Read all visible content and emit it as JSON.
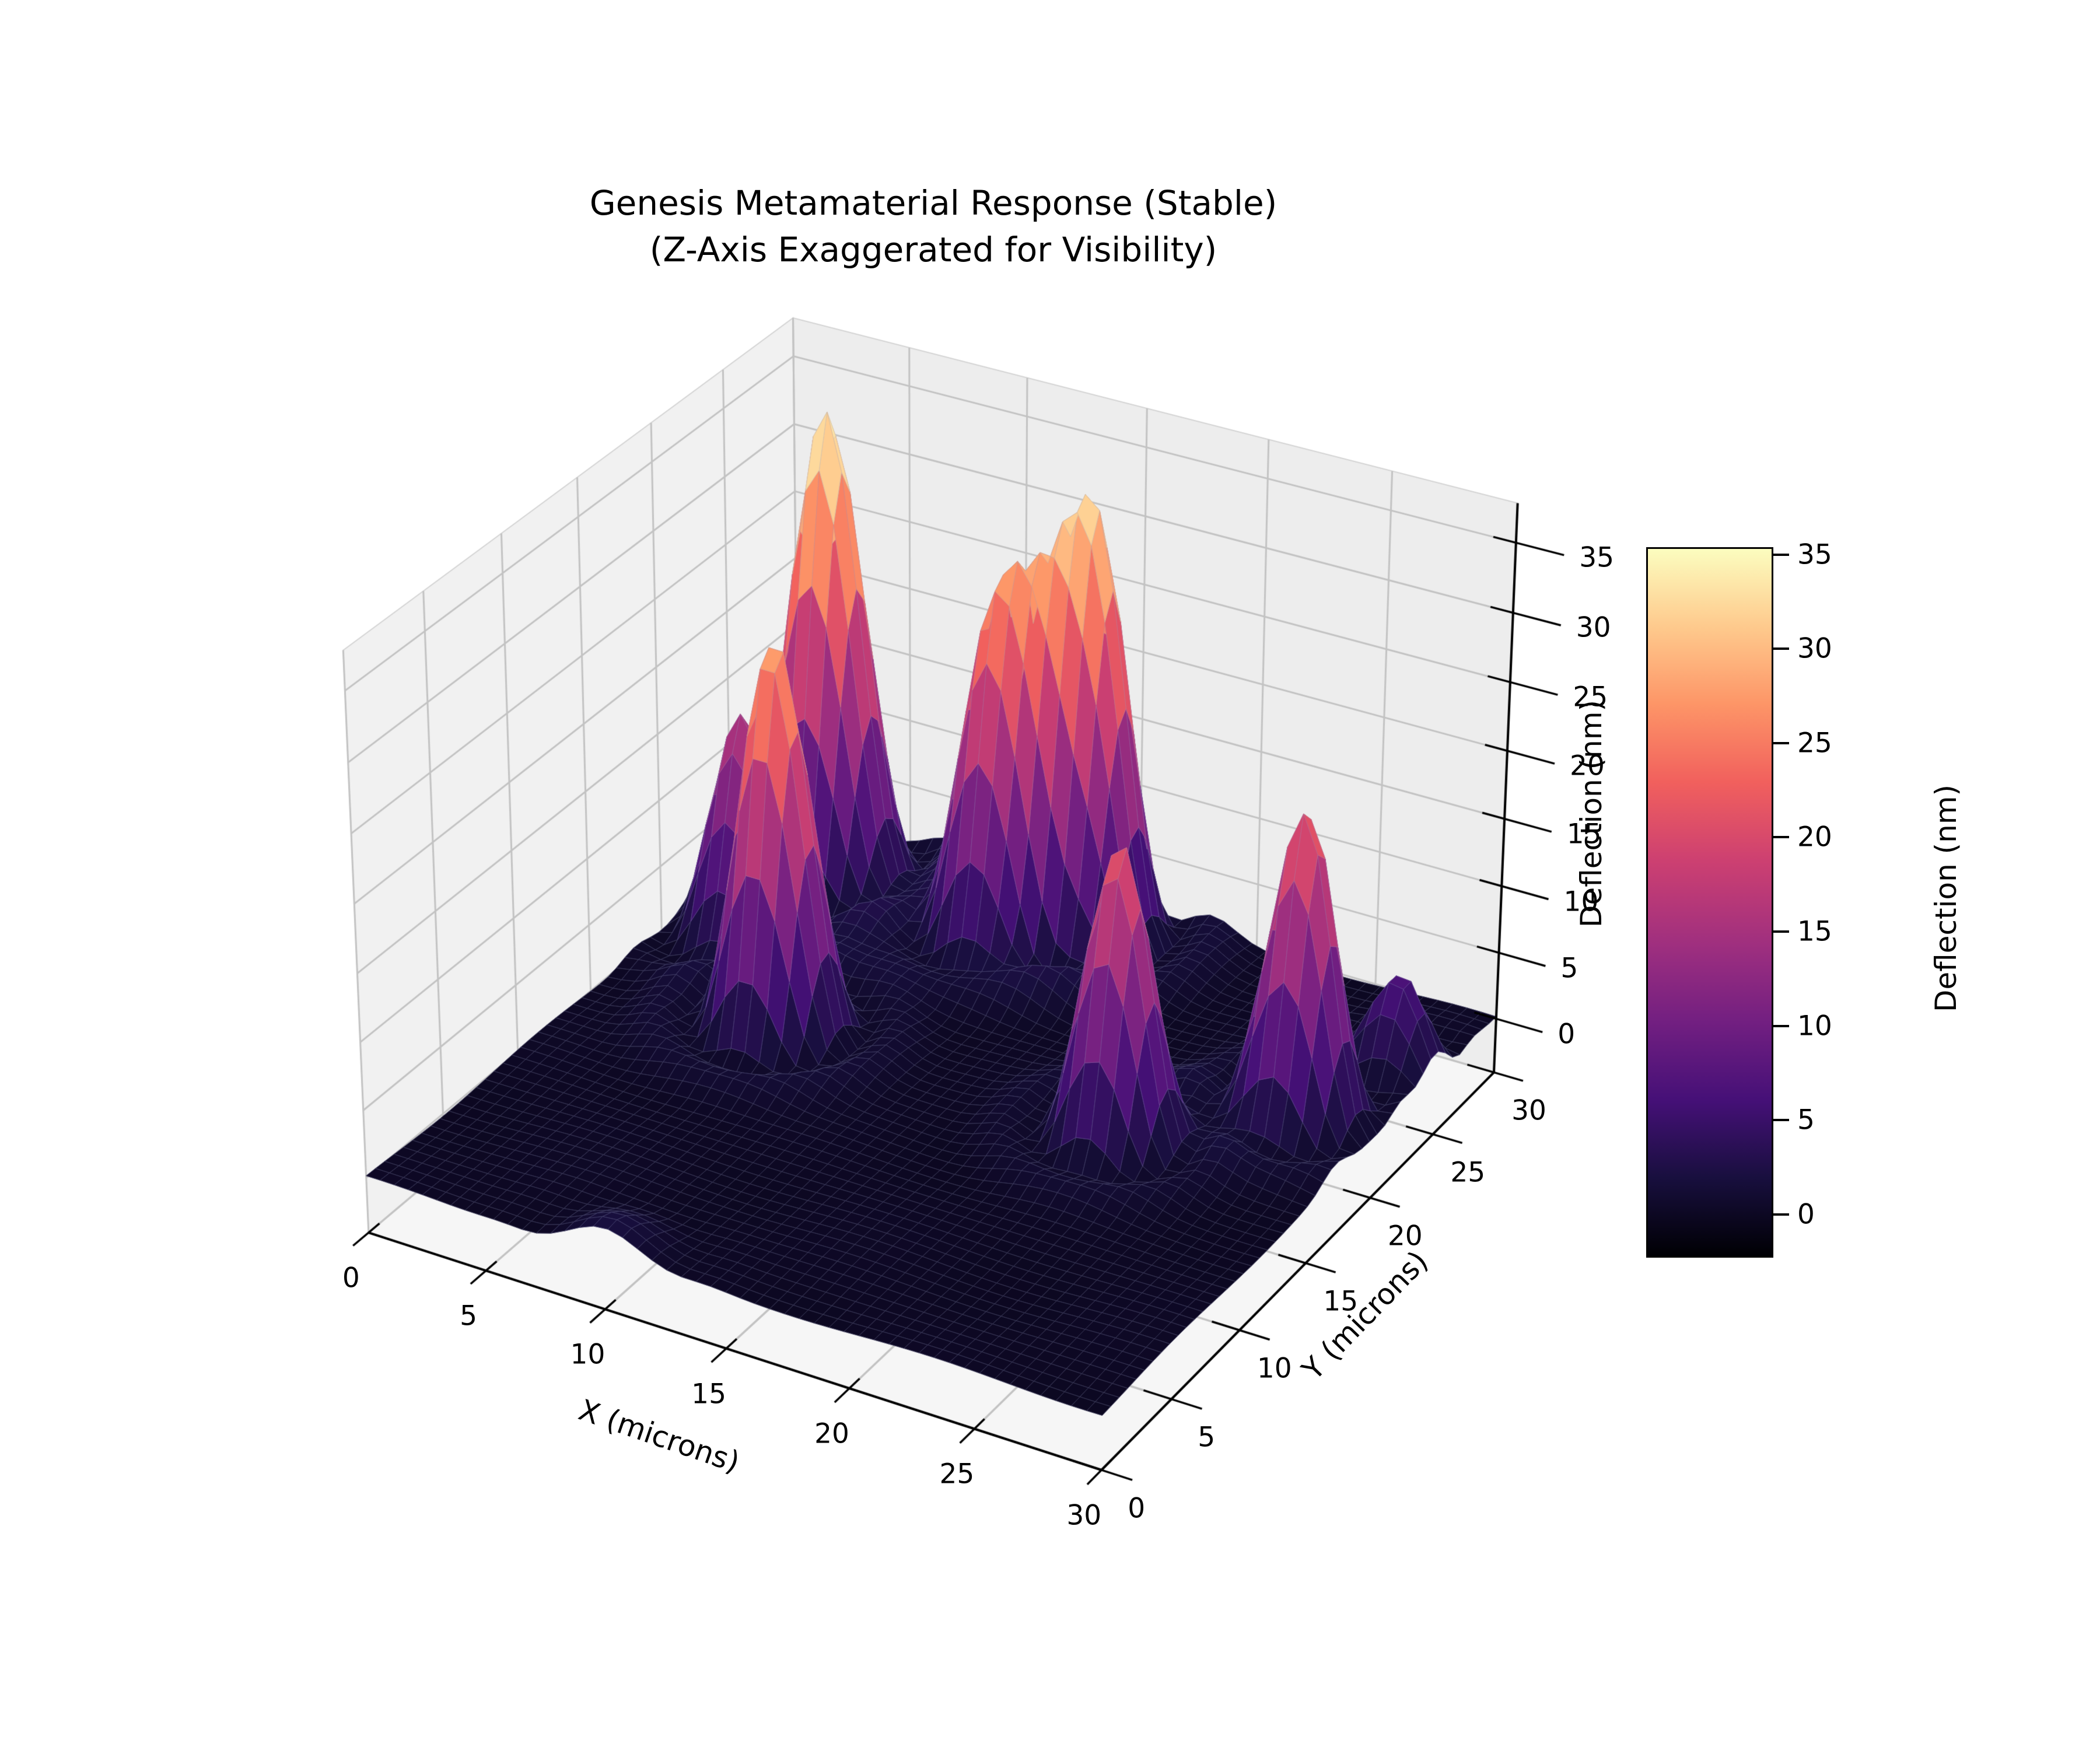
{
  "title": {
    "line1": "Genesis Metamaterial Response (Stable)",
    "line2": "(Z-Axis Exaggerated for Visibility)"
  },
  "chart_data": {
    "type": "surface3d",
    "title": "Genesis Metamaterial Response (Stable) (Z-Axis Exaggerated for Visibility)",
    "xlabel": "X (microns)",
    "ylabel": "Y (microns)",
    "zlabel": "Deflection (nm)",
    "xlim": [
      0,
      30
    ],
    "ylim": [
      0,
      30
    ],
    "zlim": [
      -4.1,
      37.8
    ],
    "x_ticks": [
      0,
      5,
      10,
      15,
      20,
      25,
      30
    ],
    "y_ticks": [
      0,
      5,
      10,
      15,
      20,
      25,
      30
    ],
    "z_ticks": [
      0,
      5,
      10,
      15,
      20,
      25,
      30,
      35
    ],
    "grid": true,
    "view": {
      "azim_deg": -60,
      "elev_deg": 30,
      "perspective_distance": 9.25,
      "z_box_aspect": 0.79
    },
    "colormap": {
      "name": "magma",
      "stops": [
        [
          0,
          "#000004"
        ],
        [
          0.11,
          "#180f3e"
        ],
        [
          0.22,
          "#451077"
        ],
        [
          0.33,
          "#721f81"
        ],
        [
          0.44,
          "#9f2f7f"
        ],
        [
          0.56,
          "#cd4071"
        ],
        [
          0.67,
          "#f1605d"
        ],
        [
          0.78,
          "#fd9567"
        ],
        [
          0.89,
          "#feca8d"
        ],
        [
          1,
          "#fcfdbf"
        ]
      ]
    },
    "color_range_nm": [
      -2.2,
      35.3
    ],
    "colorbar": {
      "label": "Deflection (nm)",
      "ticks": [
        0,
        5,
        10,
        15,
        20,
        25,
        30,
        35
      ]
    },
    "surface_model": {
      "grid_resolution": 50,
      "baseline_nm": 0,
      "baseline_ripple_nm": 0.18,
      "ring": {
        "trough_pos_sigma": 2.2,
        "trough_depth_frac": 0.06,
        "trough_width": 0.5,
        "ridge_pos_sigma": 3.4,
        "ridge_height_frac": 0.045,
        "ridge_width": 0.8
      },
      "peaks": [
        {
          "x_um": 3.0,
          "y_um": 21.0,
          "amplitude_nm": 16.0,
          "sigma_um": 1.2
        },
        {
          "x_um": 7.5,
          "y_um": 16.0,
          "amplitude_nm": 29.0,
          "sigma_um": 1.3
        },
        {
          "x_um": 3.5,
          "y_um": 26.5,
          "amplitude_nm": 35.3,
          "sigma_um": 1.4
        },
        {
          "x_um": 11.5,
          "y_um": 25.5,
          "amplitude_nm": 27.0,
          "sigma_um": 1.3
        },
        {
          "x_um": 14.0,
          "y_um": 27.5,
          "amplitude_nm": 33.0,
          "sigma_um": 1.4
        },
        {
          "x_um": 22.0,
          "y_um": 15.5,
          "amplitude_nm": 22.0,
          "sigma_um": 1.2
        },
        {
          "x_um": 27.0,
          "y_um": 20.0,
          "amplitude_nm": 23.0,
          "sigma_um": 1.2
        },
        {
          "x_um": 28.5,
          "y_um": 25.0,
          "amplitude_nm": 7.0,
          "sigma_um": 1.0
        },
        {
          "x_um": 10.0,
          "y_um": 0.5,
          "amplitude_nm": 2.0,
          "sigma_um": 1.3
        }
      ]
    },
    "style": {
      "background": "#ffffff",
      "text_color": "#000000",
      "axis_line": "#000000",
      "pane_floor": "#f6f6f6",
      "pane_wall_left": "#f1f1f1",
      "pane_wall_right": "#ededed",
      "pane_edge": "#d4d4d4",
      "grid_line": "#c3c3c3",
      "mesh_line": "rgba(150,155,195,0.35)"
    }
  }
}
